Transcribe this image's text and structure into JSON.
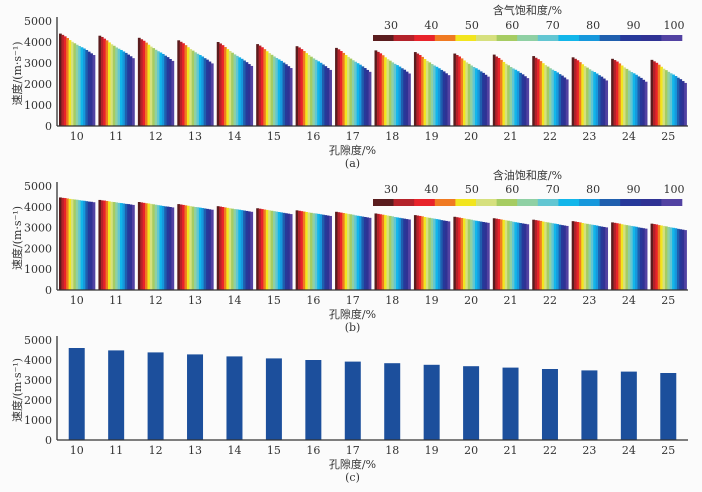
{
  "colors": [
    "#5a1c1e",
    "#b3222a",
    "#e8232a",
    "#f07a22",
    "#f2e51e",
    "#d6e07e",
    "#a6cc62",
    "#8fd0a4",
    "#62c6d2",
    "#12b6ea",
    "#1698dc",
    "#1f5fae",
    "#26399a",
    "#2f3294",
    "#5242a2"
  ],
  "bar_color_c": "#1c4f9c",
  "chart_data": [
    {
      "type": "bar",
      "panel": "(a)",
      "xlabel": "孔隙度/%",
      "ylabel": "速度/(m·s⁻¹)",
      "ylim": [
        0,
        5000
      ],
      "yticks": [
        "0",
        "1000",
        "2000",
        "3000",
        "4000",
        "5000"
      ],
      "categories": [
        "10",
        "11",
        "12",
        "13",
        "14",
        "15",
        "16",
        "17",
        "18",
        "19",
        "20",
        "21",
        "22",
        "23",
        "24",
        "25"
      ],
      "legend": {
        "title": "含气饱和度/%",
        "labels": [
          "30",
          "40",
          "50",
          "60",
          "70",
          "80",
          "90",
          "100"
        ],
        "levels": [
          30,
          35,
          40,
          45,
          50,
          55,
          60,
          65,
          70,
          75,
          80,
          85,
          90,
          95,
          100
        ],
        "placement": "top-right"
      },
      "values": [
        [
          4400,
          4340,
          4270,
          4190,
          4090,
          4010,
          3940,
          3870,
          3810,
          3750,
          3690,
          3620,
          3540,
          3460,
          3380
        ],
        [
          4300,
          4240,
          4160,
          4080,
          3980,
          3890,
          3820,
          3740,
          3680,
          3620,
          3550,
          3480,
          3400,
          3320,
          3230
        ],
        [
          4200,
          4130,
          4060,
          3970,
          3870,
          3780,
          3710,
          3630,
          3560,
          3500,
          3430,
          3350,
          3280,
          3190,
          3100
        ],
        [
          4080,
          4010,
          3940,
          3850,
          3750,
          3660,
          3590,
          3510,
          3440,
          3380,
          3310,
          3230,
          3160,
          3070,
          2980
        ],
        [
          4000,
          3930,
          3850,
          3760,
          3660,
          3570,
          3490,
          3410,
          3340,
          3270,
          3200,
          3120,
          3040,
          2950,
          2860
        ],
        [
          3900,
          3830,
          3750,
          3660,
          3560,
          3470,
          3390,
          3310,
          3240,
          3170,
          3100,
          3020,
          2940,
          2850,
          2760
        ],
        [
          3800,
          3740,
          3660,
          3570,
          3470,
          3380,
          3300,
          3220,
          3150,
          3080,
          3010,
          2930,
          2850,
          2760,
          2670
        ],
        [
          3720,
          3650,
          3570,
          3480,
          3380,
          3290,
          3210,
          3130,
          3060,
          2990,
          2920,
          2840,
          2760,
          2670,
          2580
        ],
        [
          3600,
          3530,
          3460,
          3370,
          3270,
          3180,
          3110,
          3030,
          2960,
          2900,
          2830,
          2750,
          2680,
          2590,
          2500
        ],
        [
          3520,
          3450,
          3380,
          3290,
          3190,
          3100,
          3030,
          2950,
          2880,
          2820,
          2750,
          2670,
          2600,
          2510,
          2420
        ],
        [
          3450,
          3380,
          3310,
          3220,
          3120,
          3030,
          2960,
          2880,
          2810,
          2750,
          2680,
          2600,
          2530,
          2440,
          2350
        ],
        [
          3400,
          3310,
          3240,
          3150,
          3050,
          2960,
          2890,
          2810,
          2740,
          2680,
          2610,
          2530,
          2460,
          2370,
          2280
        ],
        [
          3330,
          3250,
          3180,
          3090,
          2990,
          2900,
          2830,
          2750,
          2680,
          2620,
          2550,
          2470,
          2400,
          2310,
          2220
        ],
        [
          3270,
          3200,
          3130,
          3040,
          2940,
          2850,
          2780,
          2700,
          2630,
          2570,
          2500,
          2420,
          2350,
          2260,
          2170
        ],
        [
          3200,
          3140,
          3070,
          2980,
          2880,
          2790,
          2720,
          2640,
          2570,
          2510,
          2440,
          2360,
          2290,
          2200,
          2110
        ],
        [
          3150,
          3080,
          3010,
          2920,
          2820,
          2730,
          2660,
          2580,
          2510,
          2450,
          2380,
          2300,
          2230,
          2140,
          2050
        ]
      ]
    },
    {
      "type": "bar",
      "panel": "(b)",
      "xlabel": "孔隙度/%",
      "ylabel": "速度/(m·s⁻¹)",
      "ylim": [
        0,
        5000
      ],
      "yticks": [
        "0",
        "1000",
        "2000",
        "3000",
        "4000",
        "5000"
      ],
      "categories": [
        "10",
        "11",
        "12",
        "13",
        "14",
        "15",
        "16",
        "17",
        "18",
        "19",
        "20",
        "21",
        "22",
        "23",
        "24",
        "25"
      ],
      "legend": {
        "title": "含油饱和度/%",
        "labels": [
          "30",
          "40",
          "50",
          "60",
          "70",
          "80",
          "90",
          "100"
        ],
        "levels": [
          30,
          35,
          40,
          45,
          50,
          55,
          60,
          65,
          70,
          75,
          80,
          85,
          90,
          95,
          100
        ],
        "placement": "top-right"
      },
      "values": [
        [
          4450,
          4430,
          4420,
          4400,
          4380,
          4370,
          4350,
          4340,
          4320,
          4300,
          4290,
          4270,
          4250,
          4240,
          4220
        ],
        [
          4330,
          4310,
          4300,
          4280,
          4260,
          4240,
          4230,
          4210,
          4190,
          4180,
          4160,
          4140,
          4130,
          4110,
          4090
        ],
        [
          4230,
          4210,
          4190,
          4170,
          4160,
          4140,
          4120,
          4100,
          4080,
          4060,
          4040,
          4020,
          4010,
          3990,
          3970
        ],
        [
          4130,
          4110,
          4090,
          4070,
          4050,
          4030,
          4010,
          3990,
          3980,
          3960,
          3940,
          3920,
          3900,
          3880,
          3860
        ],
        [
          4030,
          4010,
          3990,
          3970,
          3950,
          3930,
          3910,
          3890,
          3880,
          3860,
          3840,
          3820,
          3800,
          3780,
          3760
        ],
        [
          3930,
          3910,
          3890,
          3870,
          3850,
          3830,
          3810,
          3790,
          3770,
          3750,
          3730,
          3710,
          3690,
          3670,
          3650
        ],
        [
          3830,
          3810,
          3790,
          3770,
          3750,
          3730,
          3710,
          3690,
          3680,
          3660,
          3640,
          3620,
          3600,
          3580,
          3560
        ],
        [
          3760,
          3740,
          3720,
          3700,
          3680,
          3660,
          3640,
          3620,
          3590,
          3570,
          3550,
          3530,
          3510,
          3490,
          3470
        ],
        [
          3680,
          3660,
          3640,
          3620,
          3600,
          3580,
          3560,
          3540,
          3510,
          3490,
          3470,
          3450,
          3430,
          3410,
          3390
        ],
        [
          3600,
          3580,
          3560,
          3540,
          3510,
          3490,
          3470,
          3450,
          3430,
          3410,
          3390,
          3360,
          3340,
          3320,
          3300
        ],
        [
          3520,
          3500,
          3480,
          3460,
          3440,
          3420,
          3400,
          3380,
          3350,
          3330,
          3310,
          3290,
          3270,
          3250,
          3230
        ],
        [
          3450,
          3430,
          3410,
          3390,
          3370,
          3350,
          3330,
          3310,
          3280,
          3260,
          3240,
          3220,
          3200,
          3180,
          3160
        ],
        [
          3380,
          3360,
          3340,
          3320,
          3290,
          3270,
          3250,
          3230,
          3210,
          3190,
          3170,
          3140,
          3120,
          3100,
          3080
        ],
        [
          3310,
          3290,
          3270,
          3250,
          3220,
          3200,
          3180,
          3160,
          3140,
          3120,
          3100,
          3070,
          3050,
          3030,
          3010
        ],
        [
          3250,
          3230,
          3210,
          3190,
          3160,
          3140,
          3120,
          3100,
          3080,
          3060,
          3040,
          3010,
          2990,
          2970,
          2950
        ],
        [
          3190,
          3170,
          3150,
          3120,
          3100,
          3080,
          3060,
          3030,
          3010,
          2990,
          2970,
          2940,
          2920,
          2900,
          2880
        ]
      ]
    },
    {
      "type": "bar",
      "panel": "(c)",
      "xlabel": "孔隙度/%",
      "ylabel": "速度/(m·s⁻¹)",
      "ylim": [
        0,
        5000
      ],
      "yticks": [
        "0",
        "1000",
        "2000",
        "3000",
        "4000",
        "5000"
      ],
      "categories": [
        "10",
        "11",
        "12",
        "13",
        "14",
        "15",
        "16",
        "17",
        "18",
        "19",
        "20",
        "21",
        "22",
        "23",
        "24",
        "25"
      ],
      "values": [
        4600,
        4480,
        4380,
        4280,
        4180,
        4080,
        4000,
        3920,
        3840,
        3760,
        3690,
        3620,
        3550,
        3480,
        3420,
        3350
      ]
    }
  ]
}
